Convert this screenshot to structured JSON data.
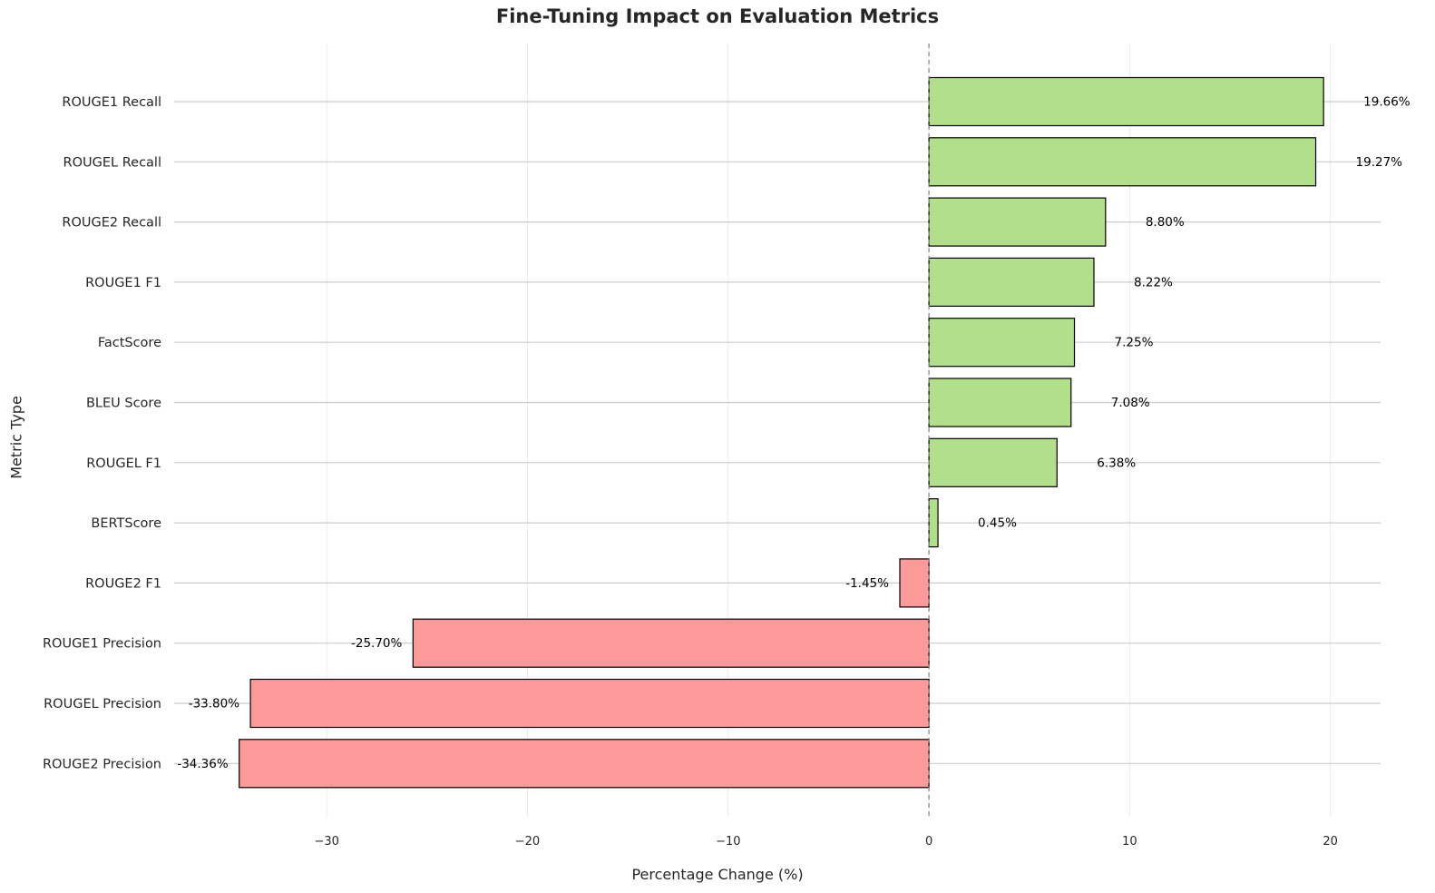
{
  "chart_data": {
    "type": "bar",
    "orientation": "horizontal",
    "title": "Fine-Tuning Impact on Evaluation Metrics",
    "xlabel": "Percentage Change (%)",
    "ylabel": "Metric Type",
    "categories": [
      "ROUGE1 Recall",
      "ROUGEL Recall",
      "ROUGE2 Recall",
      "ROUGE1 F1",
      "FactScore",
      "BLEU Score",
      "ROUGEL F1",
      "BERTScore",
      "ROUGE2 F1",
      "ROUGE1 Precision",
      "ROUGEL Precision",
      "ROUGE2 Precision"
    ],
    "values": [
      19.66,
      19.27,
      8.8,
      8.22,
      7.25,
      7.08,
      6.38,
      0.45,
      -1.45,
      -25.7,
      -33.8,
      -34.36
    ],
    "data_labels": [
      "19.66%",
      "19.27%",
      "8.80%",
      "8.22%",
      "7.25%",
      "7.08%",
      "6.38%",
      "0.45%",
      "-1.45%",
      "-25.70%",
      "-33.80%",
      "-34.36%"
    ],
    "xticks": [
      -30,
      -20,
      -10,
      0,
      10,
      20
    ],
    "xtick_labels": [
      "−30",
      "−20",
      "−10",
      "0",
      "10",
      "20"
    ],
    "xlim": [
      -37.6,
      22.5
    ],
    "positive_color": "#b2df8a",
    "negative_color": "#fb9a99",
    "zero_line": "dashed",
    "grid": true,
    "legend": "none"
  }
}
